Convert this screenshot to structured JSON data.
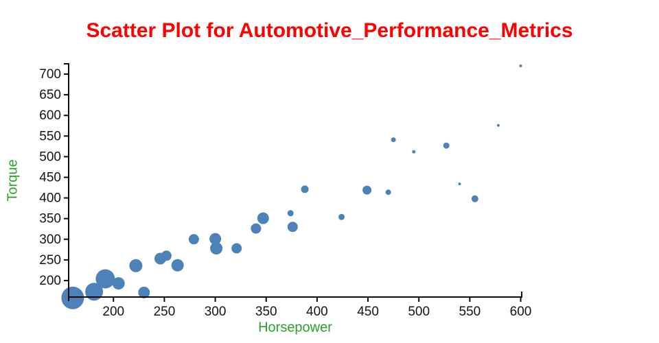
{
  "title": "Scatter Plot for Automotive_Performance_Metrics",
  "colors": {
    "title": "#ff0000",
    "axis_title": "#2aa22a",
    "point": "#4d82b8",
    "axis_line": "#0a0a0a",
    "tick_label": "#141414"
  },
  "chart_data": {
    "type": "scatter",
    "title": "Scatter Plot for Automotive_Performance_Metrics",
    "xlabel": "Horsepower",
    "ylabel": "Torque",
    "x_domain": [
      156,
      601
    ],
    "y_domain": [
      160,
      725
    ],
    "x_ticks": [
      200,
      250,
      300,
      350,
      400,
      450,
      500,
      550,
      600
    ],
    "y_ticks": [
      200,
      250,
      300,
      350,
      400,
      450,
      500,
      550,
      600,
      650,
      700
    ],
    "grid": false,
    "legend": "none",
    "points": [
      {
        "x": 160,
        "y": 158,
        "r": 16.5
      },
      {
        "x": 181,
        "y": 173,
        "r": 13
      },
      {
        "x": 192,
        "y": 204,
        "r": 14
      },
      {
        "x": 205,
        "y": 193,
        "r": 9
      },
      {
        "x": 222,
        "y": 236,
        "r": 9.5
      },
      {
        "x": 230,
        "y": 171,
        "r": 8.5
      },
      {
        "x": 246,
        "y": 253,
        "r": 8.5
      },
      {
        "x": 252,
        "y": 260,
        "r": 7.5
      },
      {
        "x": 263,
        "y": 237,
        "r": 9
      },
      {
        "x": 279,
        "y": 300,
        "r": 7.5
      },
      {
        "x": 300,
        "y": 301,
        "r": 8.5
      },
      {
        "x": 301,
        "y": 278,
        "r": 9
      },
      {
        "x": 321,
        "y": 278,
        "r": 7.5
      },
      {
        "x": 340,
        "y": 326,
        "r": 7.5
      },
      {
        "x": 347,
        "y": 351,
        "r": 8.5
      },
      {
        "x": 374,
        "y": 363,
        "r": 4.5
      },
      {
        "x": 376,
        "y": 330,
        "r": 7.5
      },
      {
        "x": 388,
        "y": 421,
        "r": 5.5
      },
      {
        "x": 424,
        "y": 354,
        "r": 4.5
      },
      {
        "x": 449,
        "y": 419,
        "r": 6.5
      },
      {
        "x": 470,
        "y": 414,
        "r": 4
      },
      {
        "x": 475,
        "y": 541,
        "r": 3.5
      },
      {
        "x": 495,
        "y": 512,
        "r": 2.5
      },
      {
        "x": 527,
        "y": 527,
        "r": 4.5
      },
      {
        "x": 540,
        "y": 434,
        "r": 2
      },
      {
        "x": 555,
        "y": 398,
        "r": 5
      },
      {
        "x": 578,
        "y": 576,
        "r": 2
      },
      {
        "x": 600,
        "y": 720,
        "r": 2
      }
    ]
  }
}
